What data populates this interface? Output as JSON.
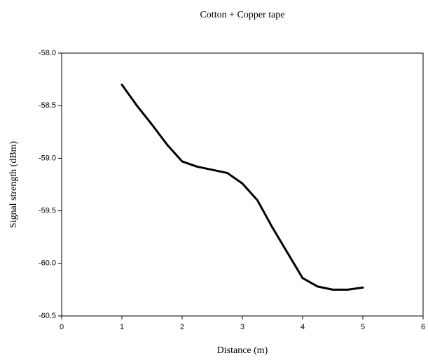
{
  "chart_data": {
    "type": "line",
    "title": "Cotton + Copper tape",
    "x_label": "Distance (m)",
    "y_label": "Signal strength (dBm)",
    "x": [
      1,
      1.25,
      1.5,
      1.75,
      2,
      2.25,
      2.5,
      2.75,
      3,
      3.25,
      3.5,
      3.75,
      4,
      4.25,
      4.5,
      4.75,
      5
    ],
    "series": [
      {
        "color": "#000000",
        "values": [
          -58.3,
          -58.5,
          -58.68,
          -58.87,
          -59.03,
          -59.08,
          -59.11,
          -59.14,
          -59.24,
          -59.4,
          -59.66,
          -59.9,
          -60.14,
          -60.22,
          -60.25,
          -60.25,
          -60.23
        ]
      }
    ],
    "xlim": [
      0,
      6
    ],
    "xticks": [
      0,
      1,
      2,
      3,
      4,
      5,
      6
    ],
    "ylim": [
      -60.5,
      -58.0
    ],
    "yticks": [
      {
        "value": -60.5,
        "label": "-60.5"
      },
      {
        "value": -60.0,
        "label": "-60.0"
      },
      {
        "value": -59.5,
        "label": "-59.5"
      },
      {
        "value": -59.0,
        "label": "-59.0"
      },
      {
        "value": -58.5,
        "label": "-58.5"
      },
      {
        "value": -58.0,
        "label": "-58.0"
      }
    ],
    "grid": false
  }
}
